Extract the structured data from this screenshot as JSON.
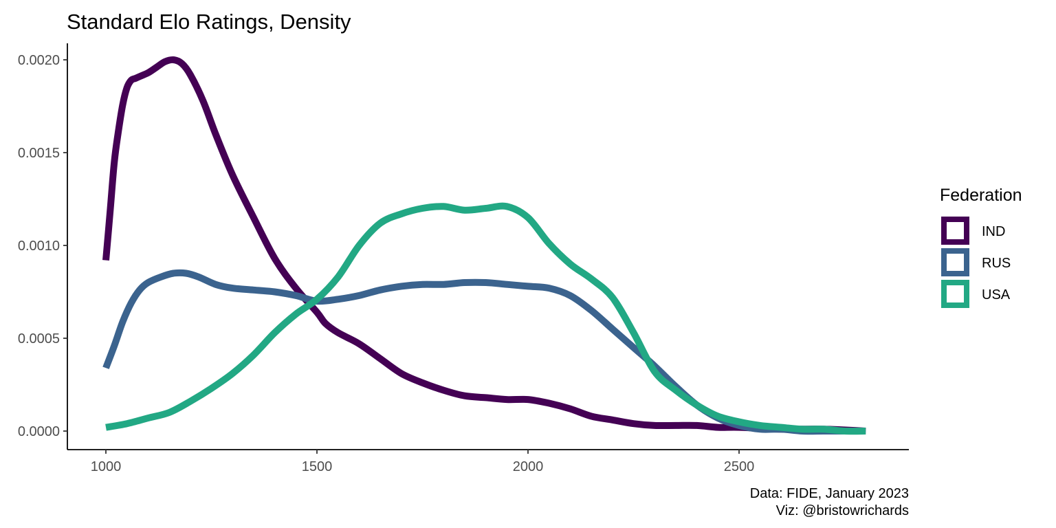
{
  "chart_data": {
    "type": "line",
    "title": "Standard Elo Ratings, Density",
    "xlabel": "",
    "ylabel": "",
    "xlim": [
      1000,
      2800
    ],
    "ylim": [
      0,
      0.002
    ],
    "x_ticks": [
      1000,
      1500,
      2000,
      2500
    ],
    "x_tick_labels": [
      "1000",
      "1500",
      "2000",
      "2500"
    ],
    "y_ticks": [
      0,
      0.0005,
      0.001,
      0.0015,
      0.002
    ],
    "y_tick_labels": [
      "0.0000",
      "0.0005",
      "0.0010",
      "0.0015",
      "0.0020"
    ],
    "grid": false,
    "legend": {
      "title": "Federation",
      "placement": "right"
    },
    "caption": [
      "Data: FIDE, January 2023",
      "Viz: @bristowrichards"
    ],
    "series": [
      {
        "name": "IND",
        "color": "#440154",
        "x": [
          1000,
          1010,
          1020,
          1030,
          1040,
          1050,
          1060,
          1070,
          1080,
          1100,
          1120,
          1140,
          1160,
          1180,
          1200,
          1230,
          1260,
          1300,
          1350,
          1400,
          1450,
          1500,
          1520,
          1550,
          1600,
          1650,
          1700,
          1750,
          1800,
          1850,
          1900,
          1950,
          2000,
          2050,
          2100,
          2150,
          2200,
          2250,
          2300,
          2350,
          2400,
          2450,
          2500,
          2600,
          2700,
          2800
        ],
        "y": [
          0.00092,
          0.00118,
          0.00145,
          0.00162,
          0.00176,
          0.00185,
          0.00189,
          0.0019,
          0.00191,
          0.00193,
          0.00196,
          0.00199,
          0.002,
          0.00198,
          0.00192,
          0.00178,
          0.0016,
          0.00138,
          0.00115,
          0.00093,
          0.00077,
          0.00064,
          0.00058,
          0.00053,
          0.00047,
          0.00039,
          0.00031,
          0.00026,
          0.00022,
          0.00019,
          0.00018,
          0.00017,
          0.00017,
          0.00015,
          0.00012,
          8e-05,
          6e-05,
          4e-05,
          3e-05,
          3e-05,
          3e-05,
          2e-05,
          2e-05,
          1e-05,
          1e-05,
          0.0
        ]
      },
      {
        "name": "RUS",
        "color": "#3b638e",
        "x": [
          1000,
          1020,
          1040,
          1060,
          1080,
          1100,
          1130,
          1160,
          1190,
          1220,
          1260,
          1300,
          1350,
          1400,
          1450,
          1500,
          1550,
          1600,
          1650,
          1700,
          1750,
          1800,
          1850,
          1900,
          1950,
          2000,
          2050,
          2100,
          2150,
          2200,
          2250,
          2300,
          2350,
          2400,
          2450,
          2500,
          2550,
          2600,
          2650,
          2700,
          2750,
          2800
        ],
        "y": [
          0.00034,
          0.00046,
          0.00059,
          0.00069,
          0.00076,
          0.0008,
          0.00083,
          0.00085,
          0.00085,
          0.00083,
          0.00079,
          0.00077,
          0.00076,
          0.00075,
          0.00073,
          0.0007,
          0.00071,
          0.00073,
          0.00076,
          0.00078,
          0.00079,
          0.00079,
          0.0008,
          0.0008,
          0.00079,
          0.00078,
          0.00077,
          0.00073,
          0.00065,
          0.00055,
          0.00045,
          0.00035,
          0.00024,
          0.00014,
          7e-05,
          3e-05,
          1e-05,
          1e-05,
          0.0,
          0.0,
          0.0,
          0.0
        ]
      },
      {
        "name": "USA",
        "color": "#22a884",
        "x": [
          1000,
          1050,
          1100,
          1150,
          1200,
          1250,
          1300,
          1350,
          1400,
          1450,
          1500,
          1550,
          1600,
          1650,
          1700,
          1750,
          1800,
          1850,
          1900,
          1950,
          2000,
          2050,
          2100,
          2150,
          2200,
          2250,
          2300,
          2350,
          2400,
          2450,
          2500,
          2550,
          2600,
          2650,
          2700,
          2750,
          2800
        ],
        "y": [
          2e-05,
          4e-05,
          7e-05,
          0.0001,
          0.00016,
          0.00023,
          0.00031,
          0.00041,
          0.00053,
          0.00063,
          0.00071,
          0.00083,
          0.001,
          0.00112,
          0.00117,
          0.0012,
          0.00121,
          0.00119,
          0.0012,
          0.00121,
          0.00115,
          0.00101,
          0.0009,
          0.00082,
          0.00072,
          0.00053,
          0.00032,
          0.00022,
          0.00014,
          8e-05,
          5e-05,
          3e-05,
          2e-05,
          1e-05,
          1e-05,
          0.0,
          0.0
        ]
      }
    ]
  }
}
